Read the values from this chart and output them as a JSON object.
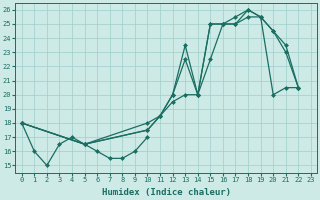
{
  "xlabel": "Humidex (Indice chaleur)",
  "xlim": [
    -0.5,
    23.5
  ],
  "ylim": [
    14.5,
    26.5
  ],
  "yticks": [
    15,
    16,
    17,
    18,
    19,
    20,
    21,
    22,
    23,
    24,
    25,
    26
  ],
  "xticks": [
    0,
    1,
    2,
    3,
    4,
    5,
    6,
    7,
    8,
    9,
    10,
    11,
    12,
    13,
    14,
    15,
    16,
    17,
    18,
    19,
    20,
    21,
    22,
    23
  ],
  "bg_color": "#ceeae6",
  "grid_color": "#9ecec8",
  "line_color": "#1a6e62",
  "line1_x": [
    0,
    1,
    2,
    3,
    4,
    5,
    6,
    7,
    8,
    9,
    10
  ],
  "line1_y": [
    18,
    16,
    15,
    16.5,
    17,
    16.5,
    16,
    15.5,
    15.5,
    16,
    17
  ],
  "line2_x": [
    0,
    5,
    10,
    11,
    12,
    13,
    14,
    15,
    16,
    17,
    18,
    19,
    20,
    21,
    22
  ],
  "line2_y": [
    18,
    16.5,
    17.5,
    18.5,
    20,
    22.5,
    20,
    25,
    25,
    25.5,
    26,
    25.5,
    24.5,
    23,
    20.5
  ],
  "line3_x": [
    0,
    5,
    10,
    11,
    12,
    13,
    14,
    15,
    16,
    17,
    18,
    19,
    20,
    21,
    22
  ],
  "line3_y": [
    18,
    16.5,
    17.5,
    18.5,
    20,
    23.5,
    20,
    25,
    25,
    25,
    26,
    25.5,
    24.5,
    23.5,
    20.5
  ],
  "line4_x": [
    0,
    5,
    10,
    11,
    12,
    13,
    14,
    15,
    16,
    17,
    18,
    19,
    20,
    21,
    22
  ],
  "line4_y": [
    18,
    16.5,
    18,
    18.5,
    19.5,
    20,
    20,
    22.5,
    25,
    25,
    25.5,
    25.5,
    20,
    20.5,
    20.5
  ]
}
